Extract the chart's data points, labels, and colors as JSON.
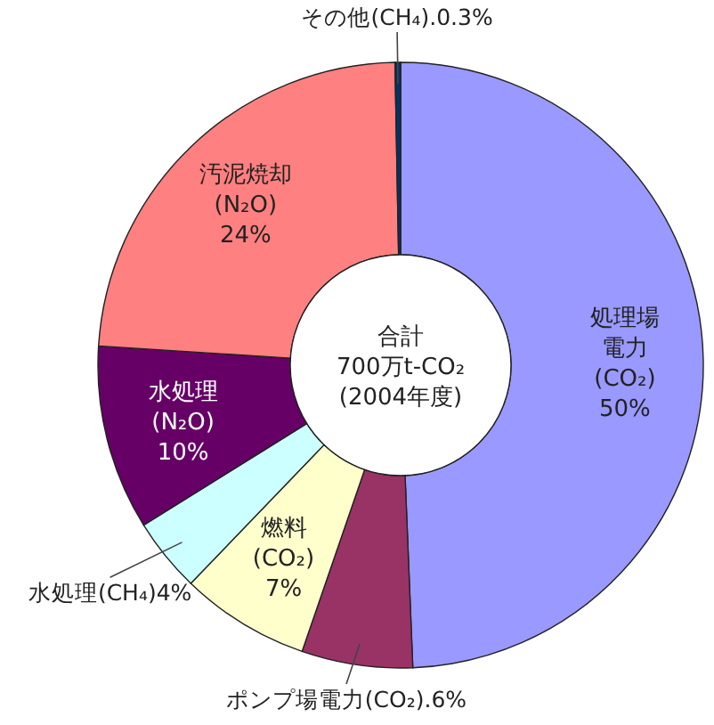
{
  "chart_data": {
    "type": "donut",
    "categories": [
      "処理場電力(CO₂)",
      "ポンプ場電力(CO₂).",
      "燃料(CO₂)",
      "水処理(CH₄)",
      "水処理(N₂O)",
      "汚泥焼却(N₂O)",
      "その他(CH₄)."
    ],
    "values": [
      50,
      6,
      7,
      4,
      10,
      24,
      0.3
    ],
    "value_labels": [
      "50%",
      "6%",
      "7%",
      "4%",
      "10%",
      "24%",
      "0.3%"
    ],
    "colors": [
      "#9999ff",
      "#993366",
      "#ffffcc",
      "#ccffff",
      "#660066",
      "#ff8080",
      "#003366"
    ],
    "annotations": [
      "合計",
      "700万t-CO₂",
      "(2004年度)"
    ]
  }
}
